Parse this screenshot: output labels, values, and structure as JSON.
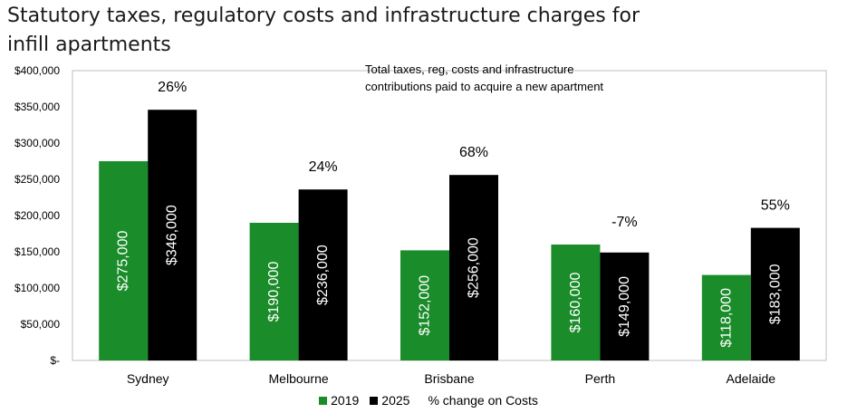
{
  "title_line1": "Statutory taxes, regulatory costs and infrastructure charges for",
  "title_line2": "infill apartments",
  "chart_data": {
    "type": "bar",
    "categories": [
      "Sydney",
      "Melbourne",
      "Brisbane",
      "Perth",
      "Adelaide"
    ],
    "series": [
      {
        "name": "2019",
        "color": "#1a8c2a",
        "values": [
          275000,
          190000,
          152000,
          160000,
          118000
        ],
        "labels": [
          "$275,000",
          "$190,000",
          "$152,000",
          "$160,000",
          "$118,000"
        ]
      },
      {
        "name": "2025",
        "color": "#000000",
        "values": [
          346000,
          236000,
          256000,
          149000,
          183000
        ],
        "labels": [
          "$346,000",
          "$236,000",
          "$256,000",
          "$149,000",
          "$183,000"
        ]
      }
    ],
    "pct_change_label": "% change on Costs",
    "pct_change": [
      "26%",
      "24%",
      "68%",
      "-7%",
      "55%"
    ],
    "ylim": [
      0,
      400000
    ],
    "yticks": [
      0,
      50000,
      100000,
      150000,
      200000,
      250000,
      300000,
      350000,
      400000
    ],
    "ytick_labels": [
      "$-",
      "$50,000",
      "$100,000",
      "$150,000",
      "$200,000",
      "$250,000",
      "$300,000",
      "$350,000",
      "$400,000"
    ],
    "annotation_line1": "Total taxes, reg, costs and infrastructure",
    "annotation_line2": "contributions paid to acquire a new apartment",
    "grid": false,
    "legend_position": "bottom"
  }
}
